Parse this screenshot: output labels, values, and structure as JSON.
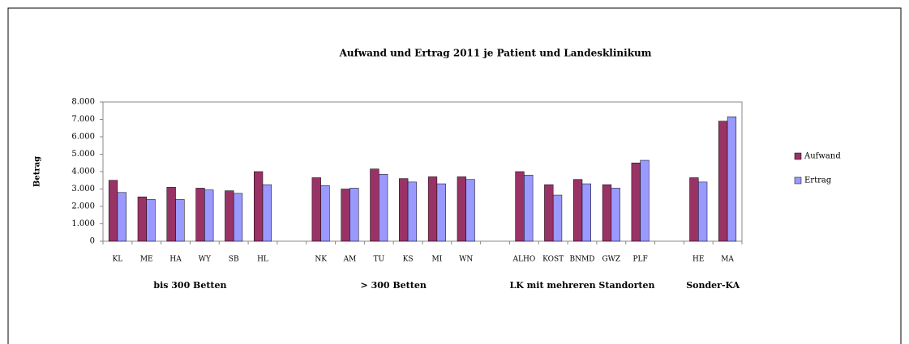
{
  "chart_data": {
    "type": "bar",
    "title": "Aufwand und Ertrag 2011 je Patient und Landesklinikum",
    "y_label": "Betrag",
    "categories": [
      "KL",
      "ME",
      "HA",
      "WY",
      "SB",
      "HL",
      null,
      "NK",
      "AM",
      "TU",
      "KS",
      "MI",
      "WN",
      null,
      "ALHO",
      "KOST",
      "BNMD",
      "GWZ",
      "PLF",
      null,
      "HE",
      "MA"
    ],
    "groups": [
      "bis 300 Betten",
      "> 300 Betten",
      "LK mit mehreren Standorten",
      "Sonder-KA"
    ],
    "series": [
      {
        "name": "Aufwand",
        "color": "#993366",
        "values": [
          3500,
          2550,
          3100,
          3050,
          2900,
          4000,
          null,
          3650,
          3000,
          4150,
          3600,
          3700,
          3700,
          null,
          4000,
          3250,
          3550,
          3250,
          4500,
          null,
          3650,
          6900
        ]
      },
      {
        "name": "Ertrag",
        "color": "#9999ff",
        "values": [
          2800,
          2400,
          2400,
          2950,
          2750,
          3250,
          null,
          3200,
          3050,
          3850,
          3400,
          3300,
          3550,
          null,
          3800,
          2650,
          3300,
          3050,
          4650,
          null,
          3400,
          7150
        ]
      }
    ],
    "ylim": [
      0,
      8000
    ],
    "yticks": [
      0,
      {
        "value": 1000,
        "label": "1.000"
      },
      {
        "value": 2000,
        "label": "2.000"
      },
      {
        "value": 3000,
        "label": "3.000"
      },
      {
        "value": 4000,
        "label": "4.000"
      },
      {
        "value": 5000,
        "label": "5.000"
      },
      {
        "value": 6000,
        "label": "6.000"
      },
      {
        "value": 7000,
        "label": "7.000"
      },
      {
        "value": 8000,
        "label": "8.000"
      }
    ],
    "grid": false,
    "legend": "right"
  }
}
